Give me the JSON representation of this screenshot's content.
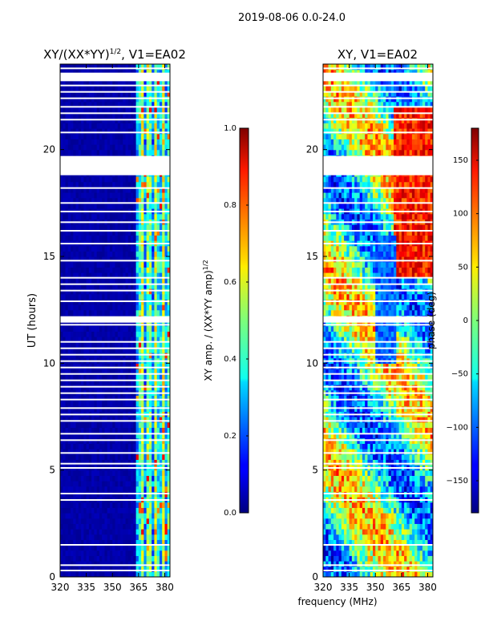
{
  "figure_title": "2019-08-06 0.0-24.0",
  "xlabel": "frequency (MHz)",
  "chart_data": [
    {
      "type": "heatmap",
      "title": "XY/(XX*YY)",
      "title_exponent": "1/2",
      "title_suffix": ", V1=EA02",
      "xlabel": "frequency (MHz)",
      "ylabel": "UT (hours)",
      "xlim": [
        320,
        383
      ],
      "ylim": [
        0,
        24
      ],
      "xticks": [
        320,
        335,
        350,
        365,
        380
      ],
      "yticks": [
        0,
        5,
        10,
        15,
        20
      ],
      "colorbar": {
        "label": "XY amp. / (XX*YY amp)",
        "label_exponent": "1/2",
        "range": [
          0.0,
          1.0
        ],
        "ticks": [
          "0.0",
          "0.2",
          "0.4",
          "0.6",
          "0.8",
          "1.0"
        ],
        "tick_values": [
          0.0,
          0.2,
          0.4,
          0.6,
          0.8,
          1.0
        ],
        "colormap": "jet"
      },
      "flagged_hours": [
        0.3,
        0.55,
        1.5,
        3.6,
        3.9,
        5.1,
        5.3,
        5.8,
        6.4,
        6.7,
        7.3,
        7.6,
        7.9,
        8.3,
        8.6,
        8.9,
        9.2,
        9.5,
        9.8,
        10.1,
        10.4,
        10.7,
        11.0,
        11.8,
        12.1,
        12.9,
        13.4,
        13.7,
        14.0,
        14.8,
        15.6,
        16.2,
        16.6,
        17.1,
        17.5,
        18.2,
        18.9,
        19.1,
        19.6,
        20.8,
        21.4,
        21.7,
        22.0,
        22.4,
        22.7,
        23.0,
        23.4,
        23.8
      ],
      "flagged_bands": [
        [
          11.9,
          12.2
        ],
        [
          18.8,
          19.7
        ],
        [
          23.2,
          23.6
        ]
      ],
      "summary": "Low amplitude (~0.0-0.1) at 320-363 MHz; moderate (0.3-0.9) structured amplitude in 363-383 MHz channels"
    },
    {
      "type": "heatmap",
      "title": "XY, V1=EA02",
      "xlabel": "frequency (MHz)",
      "ylabel": "",
      "xlim": [
        320,
        383
      ],
      "ylim": [
        0,
        24
      ],
      "xticks": [
        320,
        335,
        350,
        365,
        380
      ],
      "yticks": [
        0,
        5,
        10,
        15,
        20
      ],
      "colorbar": {
        "label": "phase (deg)",
        "range": [
          -180,
          180
        ],
        "ticks": [
          "150",
          "100",
          "50",
          "0",
          "−50",
          "−100",
          "−150"
        ],
        "tick_values": [
          150,
          100,
          50,
          0,
          -50,
          -100,
          -150
        ],
        "colormap": "jet"
      },
      "flagged_hours": [
        0.3,
        0.55,
        1.5,
        3.6,
        3.9,
        5.1,
        5.3,
        5.8,
        6.4,
        6.7,
        7.3,
        7.6,
        7.9,
        8.3,
        8.6,
        8.9,
        9.2,
        9.5,
        9.8,
        10.1,
        10.4,
        10.7,
        11.0,
        11.8,
        12.1,
        12.9,
        13.4,
        13.7,
        14.0,
        14.8,
        15.6,
        16.2,
        16.6,
        17.1,
        17.5,
        18.2,
        18.9,
        19.1,
        19.6,
        20.8,
        21.4,
        21.7,
        22.0,
        22.4,
        22.7,
        23.0,
        23.4,
        23.8
      ],
      "flagged_bands": [
        [
          11.9,
          12.2
        ],
        [
          18.8,
          19.7
        ],
        [
          23.2,
          23.6
        ]
      ],
      "summary": "Phase varies across full range (-180 to 180 deg) with banded structure in time and frequency"
    }
  ]
}
